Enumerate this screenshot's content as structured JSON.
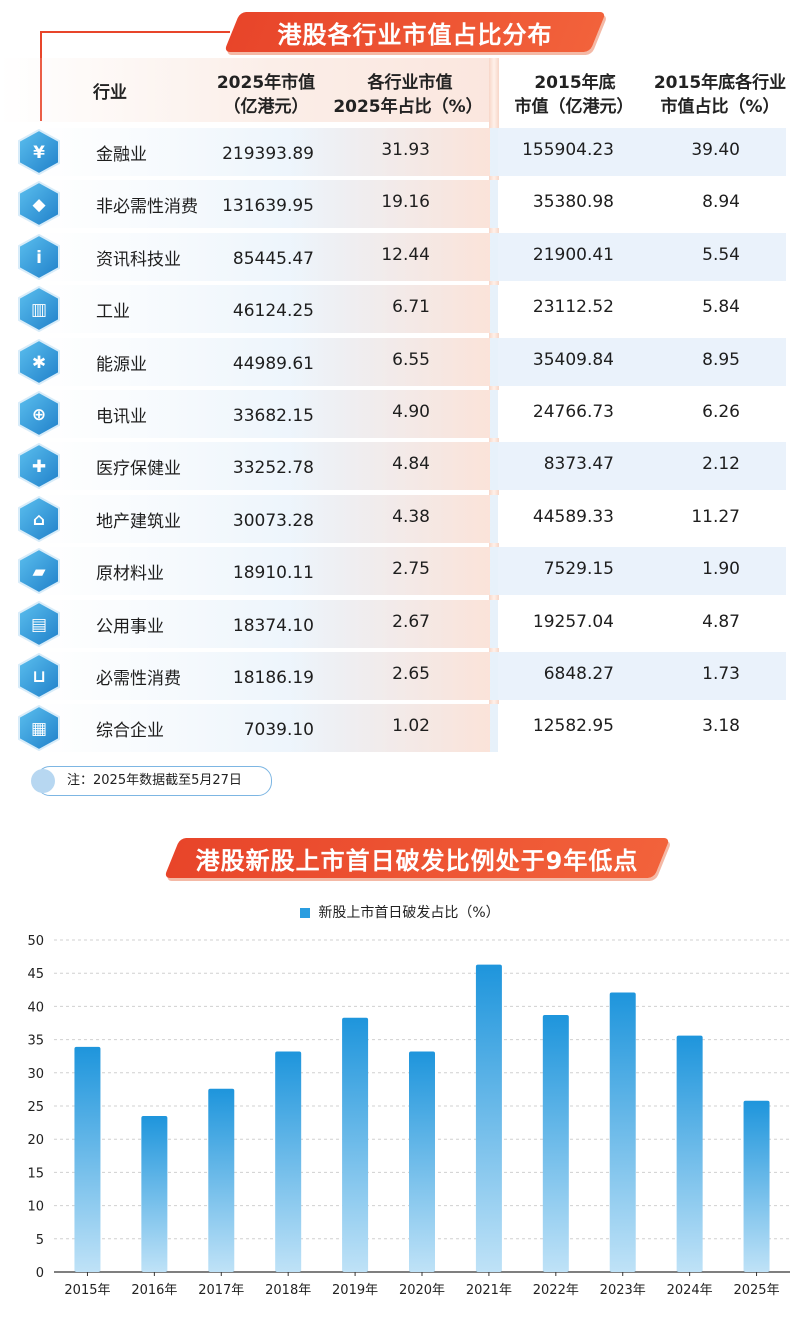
{
  "table": {
    "title": "港股各行业市值占比分布",
    "headers": {
      "industry": "行业",
      "v2025_l1": "2025年市值",
      "v2025_l2": "（亿港元）",
      "p2025_l1": "各行业市值",
      "p2025_l2": "2025年占比（%）",
      "v2015_l1": "2015年底",
      "v2015_l2": "市值（亿港元）",
      "p2015_l1": "2015年底各行业",
      "p2015_l2": "市值占比（%）"
    },
    "rows": [
      {
        "name": "金融业",
        "v2025": "219393.89",
        "p2025": "31.93",
        "v2015": "155904.23",
        "p2015": "39.40",
        "icon": "shield-yuan-icon"
      },
      {
        "name": "非必需性消费",
        "v2025": "131639.95",
        "p2025": "19.16",
        "v2015": "35380.98",
        "p2015": "8.94",
        "icon": "diamond-icon"
      },
      {
        "name": "资讯科技业",
        "v2025": "85445.47",
        "p2025": "12.44",
        "v2015": "21900.41",
        "p2015": "5.54",
        "icon": "info-icon"
      },
      {
        "name": "工业",
        "v2025": "46124.25",
        "p2025": "6.71",
        "v2015": "23112.52",
        "p2015": "5.84",
        "icon": "factory-icon"
      },
      {
        "name": "能源业",
        "v2025": "44989.61",
        "p2025": "6.55",
        "v2015": "35409.84",
        "p2015": "8.95",
        "icon": "lightbulb-icon"
      },
      {
        "name": "电讯业",
        "v2025": "33682.15",
        "p2025": "4.90",
        "v2015": "24766.73",
        "p2015": "6.26",
        "icon": "globe-icon"
      },
      {
        "name": "医疗保健业",
        "v2025": "33252.78",
        "p2025": "4.84",
        "v2015": "8373.47",
        "p2015": "2.12",
        "icon": "medical-kit-icon"
      },
      {
        "name": "地产建筑业",
        "v2025": "30073.28",
        "p2025": "4.38",
        "v2015": "44589.33",
        "p2015": "11.27",
        "icon": "house-icon"
      },
      {
        "name": "原材料业",
        "v2025": "18910.11",
        "p2025": "2.75",
        "v2015": "7529.15",
        "p2015": "1.90",
        "icon": "truck-icon"
      },
      {
        "name": "公用事业",
        "v2025": "18374.10",
        "p2025": "2.67",
        "v2015": "19257.04",
        "p2015": "4.87",
        "icon": "utility-building-icon"
      },
      {
        "name": "必需性消费",
        "v2025": "18186.19",
        "p2025": "2.65",
        "v2015": "6848.27",
        "p2015": "1.73",
        "icon": "shopping-cart-icon"
      },
      {
        "name": "综合企业",
        "v2025": "7039.10",
        "p2025": "1.02",
        "v2015": "12582.95",
        "p2015": "3.18",
        "icon": "office-building-icon"
      }
    ],
    "note": "注：2025年数据截至5月27日"
  },
  "chart_data": {
    "type": "bar",
    "title": "港股新股上市首日破发比例处于9年低点",
    "legend": "新股上市首日破发占比（%）",
    "categories": [
      "2015年",
      "2016年",
      "2017年",
      "2018年",
      "2019年",
      "2020年",
      "2021年",
      "2022年",
      "2023年",
      "2024年",
      "2025年"
    ],
    "values": [
      33.9,
      23.5,
      27.6,
      33.2,
      38.3,
      33.2,
      46.3,
      38.7,
      42.1,
      35.6,
      25.8
    ],
    "ylim": [
      0,
      50
    ],
    "yticks": [
      0,
      5,
      10,
      15,
      20,
      25,
      30,
      35,
      40,
      45,
      50
    ],
    "grid": true,
    "colors": {
      "bar_top": "#1e95dc",
      "bar_bottom": "#bfe2f7",
      "accent": "#e8452a"
    }
  }
}
